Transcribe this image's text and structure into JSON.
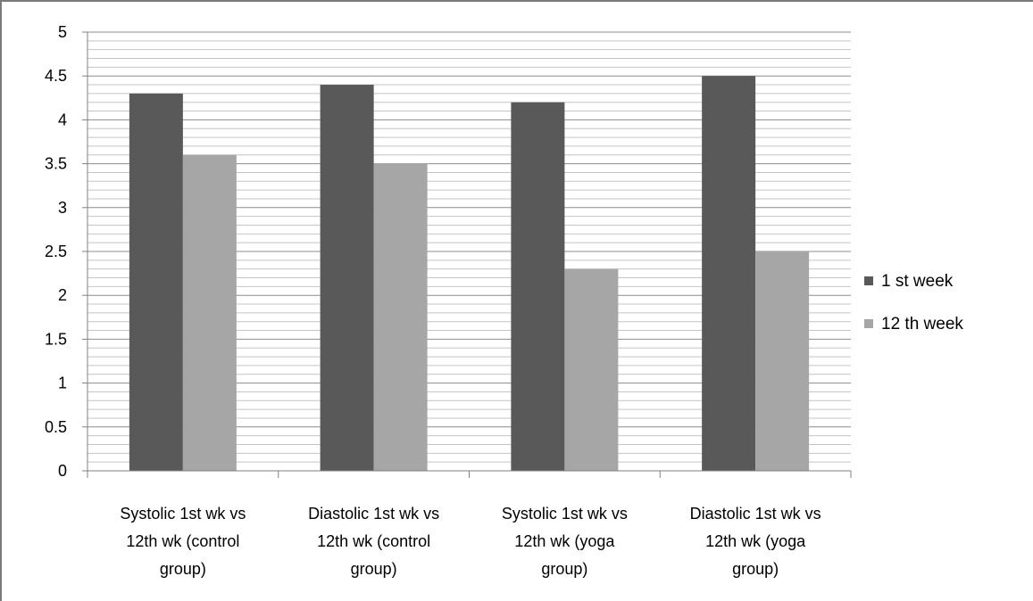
{
  "chart_data": {
    "type": "bar",
    "categories": [
      [
        "Systolic 1st wk vs",
        "12th wk (control",
        "group)"
      ],
      [
        "Diastolic 1st wk vs",
        "12th wk (control",
        "group)"
      ],
      [
        "Systolic 1st wk vs",
        "12th wk (yoga",
        "group)"
      ],
      [
        "Diastolic 1st wk vs",
        "12th wk (yoga",
        "group)"
      ]
    ],
    "series": [
      {
        "name": "1 st week",
        "values": [
          4.3,
          4.4,
          4.2,
          4.5
        ],
        "color": "#595959"
      },
      {
        "name": "12 th week",
        "values": [
          3.6,
          3.5,
          2.3,
          2.5
        ],
        "color": "#a6a6a6"
      }
    ],
    "y_ticks": [
      "0",
      "0.5",
      "1",
      "1.5",
      "2",
      "2.5",
      "3",
      "3.5",
      "4",
      "4.5",
      "5"
    ],
    "ylim": [
      0,
      5
    ],
    "minor_grid_step": 0.1,
    "major_grid_step": 0.5,
    "grid": true,
    "legend_position": "right",
    "title": "",
    "xlabel": "",
    "ylabel": ""
  }
}
